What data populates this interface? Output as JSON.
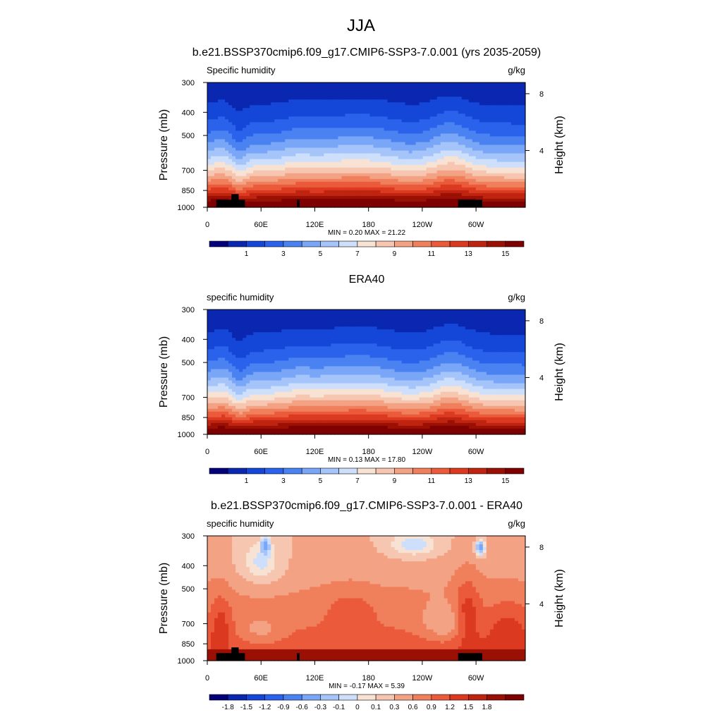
{
  "figure_title": "JJA",
  "colors": {
    "abs_colormap": [
      "#03007a",
      "#0a27b0",
      "#1446d8",
      "#2a62ec",
      "#4a82f2",
      "#7aa6f7",
      "#a5c5fa",
      "#cddffa",
      "#f7e2d3",
      "#f6c6b0",
      "#f3a284",
      "#f07f5c",
      "#ea5a3b",
      "#dc3a20",
      "#bf2410",
      "#9a1004",
      "#7e0000"
    ],
    "diff_colormap": [
      "#03007a",
      "#0a27b0",
      "#1446d8",
      "#2a62ec",
      "#4a82f2",
      "#7aa6f7",
      "#a5c5fa",
      "#cddffa",
      "#f7e2d3",
      "#f6c6b0",
      "#f3a284",
      "#f07f5c",
      "#ea5a3b",
      "#dc3a20",
      "#bf2410",
      "#9a1004",
      "#7e0000"
    ],
    "terrain": "#000000"
  },
  "chart_data": [
    {
      "type": "heatmap",
      "name": "panel-model",
      "title": "b.e21.BSSP370cmip6.f09_g17.CMIP6-SSP3-7.0.001 (yrs 2035-2059)",
      "left_label": "Specific humidity",
      "right_label": "g/kg",
      "ylabel": "Pressure (mb)",
      "ylabel_right": "Height (km)",
      "y_ticks": [
        "300",
        "400",
        "500",
        "700",
        "850",
        "1000"
      ],
      "y_tick_values": [
        300,
        400,
        500,
        700,
        850,
        1000
      ],
      "ylim": [
        1000,
        300
      ],
      "y_right_ticks": [
        "8",
        "4"
      ],
      "y_right_values": [
        8,
        4
      ],
      "x_ticks": [
        "0",
        "60E",
        "120E",
        "180",
        "120W",
        "60W"
      ],
      "x_tick_values": [
        0,
        60,
        120,
        180,
        240,
        300
      ],
      "xlim": [
        0,
        355
      ],
      "stats": "MIN =   0.20  MAX =  21.22",
      "min": 0.2,
      "max": 21.22,
      "colorbar_levels": [
        0,
        1,
        2,
        3,
        4,
        5,
        6,
        7,
        8,
        9,
        10,
        11,
        12,
        13,
        14,
        15
      ],
      "colorbar_labels": [
        "1",
        "3",
        "5",
        "7",
        "9",
        "11",
        "13",
        "15"
      ],
      "colorbar_label_levels": [
        1,
        3,
        5,
        7,
        9,
        11,
        13,
        15
      ],
      "kind": "abs",
      "terrain": [
        {
          "lon0": 10,
          "lon1": 42,
          "p_top": 930
        },
        {
          "lon0": 27,
          "lon1": 35,
          "p_top": 880
        },
        {
          "lon0": 100,
          "lon1": 103,
          "p_top": 930
        },
        {
          "lon0": 280,
          "lon1": 307,
          "p_top": 930
        }
      ]
    },
    {
      "type": "heatmap",
      "name": "panel-era40",
      "title": "ERA40",
      "left_label": "specific humidity",
      "right_label": "g/kg",
      "ylabel": "Pressure (mb)",
      "ylabel_right": "Height (km)",
      "y_ticks": [
        "300",
        "400",
        "500",
        "700",
        "850",
        "1000"
      ],
      "y_tick_values": [
        300,
        400,
        500,
        700,
        850,
        1000
      ],
      "ylim": [
        1000,
        300
      ],
      "y_right_ticks": [
        "8",
        "4"
      ],
      "y_right_values": [
        8,
        4
      ],
      "x_ticks": [
        "0",
        "60E",
        "120E",
        "180",
        "120W",
        "60W"
      ],
      "x_tick_values": [
        0,
        60,
        120,
        180,
        240,
        300
      ],
      "xlim": [
        0,
        355
      ],
      "stats": "MIN =   0.13  MAX =  17.80",
      "min": 0.13,
      "max": 17.8,
      "colorbar_levels": [
        0,
        1,
        2,
        3,
        4,
        5,
        6,
        7,
        8,
        9,
        10,
        11,
        12,
        13,
        14,
        15
      ],
      "colorbar_labels": [
        "1",
        "3",
        "5",
        "7",
        "9",
        "11",
        "13",
        "15"
      ],
      "colorbar_label_levels": [
        1,
        3,
        5,
        7,
        9,
        11,
        13,
        15
      ],
      "kind": "abs",
      "terrain": []
    },
    {
      "type": "heatmap",
      "name": "panel-difference",
      "title": "b.e21.BSSP370cmip6.f09_g17.CMIP6-SSP3-7.0.001 - ERA40",
      "left_label": "specific humidity",
      "right_label": "g/kg",
      "ylabel": "Pressure (mb)",
      "ylabel_right": "Height (km)",
      "y_ticks": [
        "300",
        "400",
        "500",
        "700",
        "850",
        "1000"
      ],
      "y_tick_values": [
        300,
        400,
        500,
        700,
        850,
        1000
      ],
      "ylim": [
        1000,
        300
      ],
      "y_right_ticks": [
        "8",
        "4"
      ],
      "y_right_values": [
        8,
        4
      ],
      "x_ticks": [
        "0",
        "60E",
        "120E",
        "180",
        "120W",
        "60W"
      ],
      "x_tick_values": [
        0,
        60,
        120,
        180,
        240,
        300
      ],
      "xlim": [
        0,
        355
      ],
      "stats": "MIN =  -0.17  MAX =   5.39",
      "min": -0.17,
      "max": 5.39,
      "colorbar_levels": [
        -1.8,
        -1.5,
        -1.2,
        -0.9,
        -0.6,
        -0.3,
        -0.1,
        0,
        0.1,
        0.3,
        0.6,
        0.9,
        1.2,
        1.5,
        1.8
      ],
      "colorbar_labels": [
        "-1.8",
        "-1.5",
        "-1.2",
        "-0.9",
        "-0.6",
        "-0.3",
        "-0.1",
        "0",
        "0.1",
        "0.3",
        "0.6",
        "0.9",
        "1.2",
        "1.5",
        "1.8"
      ],
      "colorbar_label_levels": [
        -1.8,
        -1.5,
        -1.2,
        -0.9,
        -0.6,
        -0.3,
        -0.1,
        0,
        0.1,
        0.3,
        0.6,
        0.9,
        1.2,
        1.5,
        1.8
      ],
      "kind": "diff",
      "terrain": [
        {
          "lon0": 10,
          "lon1": 42,
          "p_top": 930
        },
        {
          "lon0": 27,
          "lon1": 35,
          "p_top": 880
        },
        {
          "lon0": 100,
          "lon1": 103,
          "p_top": 930
        },
        {
          "lon0": 280,
          "lon1": 307,
          "p_top": 930
        }
      ]
    }
  ]
}
